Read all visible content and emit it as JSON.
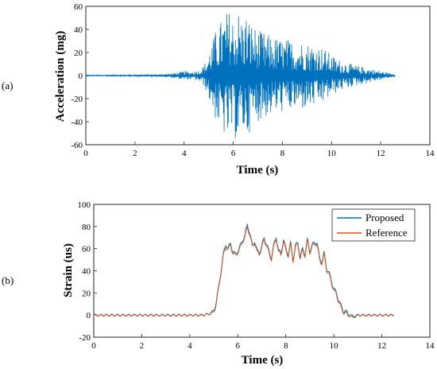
{
  "chart_data": [
    {
      "type": "line",
      "panel_label": "(a)",
      "xlabel": "Time (s)",
      "ylabel": "Acceleration (mg)",
      "xlim": [
        0,
        14
      ],
      "ylim": [
        -60,
        60
      ],
      "xticks": [
        0,
        2,
        4,
        6,
        8,
        10,
        12,
        14
      ],
      "yticks": [
        -60,
        -40,
        -20,
        0,
        20,
        40,
        60
      ],
      "grid": false,
      "legend": null,
      "series": [
        {
          "color": "#0072BD",
          "x": [
            0,
            0.5,
            1,
            1.5,
            2,
            2.5,
            3,
            3.5,
            3.8,
            4,
            4.2,
            4.4,
            4.6,
            4.8,
            4.9,
            5,
            5.1,
            5.2,
            5.3,
            5.4,
            5.5,
            5.6,
            5.7,
            5.8,
            5.9,
            6,
            6.1,
            6.2,
            6.3,
            6.4,
            6.5,
            6.6,
            6.7,
            6.8,
            6.9,
            7,
            7.2,
            7.4,
            7.6,
            7.8,
            8,
            8.2,
            8.4,
            8.6,
            8.8,
            9,
            9.2,
            9.4,
            9.6,
            9.8,
            10,
            10.2,
            10.4,
            10.6,
            10.8,
            11,
            11.2,
            11.4,
            11.6,
            11.8,
            12,
            12.2,
            12.4,
            12.6
          ],
          "amplitude": [
            0.4,
            0.4,
            0.5,
            0.5,
            0.6,
            0.7,
            1,
            2,
            3,
            4,
            3.5,
            4,
            5,
            9,
            14,
            20,
            28,
            34,
            40,
            45,
            48,
            52,
            55,
            58,
            55,
            52,
            56,
            58,
            54,
            50,
            55,
            52,
            48,
            45,
            42,
            40,
            38,
            36,
            34,
            33,
            32,
            32,
            31,
            30,
            30,
            29,
            28,
            27,
            25,
            22,
            18,
            15,
            13,
            12,
            10,
            9,
            8,
            7,
            6,
            5,
            4,
            3,
            2,
            1
          ]
        }
      ]
    },
    {
      "type": "line",
      "panel_label": "(b)",
      "xlabel": "Time (s)",
      "ylabel": "Strain (us)",
      "xlim": [
        0,
        14
      ],
      "ylim": [
        -20,
        100
      ],
      "xticks": [
        0,
        2,
        4,
        6,
        8,
        10,
        12,
        14
      ],
      "yticks": [
        -20,
        0,
        20,
        40,
        60,
        80,
        100
      ],
      "grid": false,
      "legend": "top-right",
      "series": [
        {
          "name": "Proposed",
          "color": "#0072BD",
          "x": [
            0,
            1,
            2,
            3,
            4,
            4.5,
            4.8,
            5,
            5.1,
            5.2,
            5.3,
            5.4,
            5.5,
            5.6,
            5.7,
            5.8,
            5.9,
            6,
            6.1,
            6.2,
            6.3,
            6.4,
            6.5,
            6.6,
            6.7,
            6.8,
            6.9,
            7,
            7.1,
            7.2,
            7.3,
            7.4,
            7.5,
            7.6,
            7.7,
            7.8,
            7.9,
            8,
            8.1,
            8.2,
            8.3,
            8.4,
            8.5,
            8.6,
            8.7,
            8.8,
            8.9,
            9,
            9.1,
            9.2,
            9.3,
            9.4,
            9.5,
            9.6,
            9.7,
            9.8,
            9.9,
            10,
            10.1,
            10.2,
            10.3,
            10.4,
            10.5,
            10.6,
            10.7,
            10.8,
            11,
            11.5,
            12,
            12.5
          ],
          "values": [
            0,
            0,
            0,
            0,
            0,
            0,
            1,
            4,
            12,
            25,
            40,
            55,
            64,
            60,
            65,
            57,
            55,
            58,
            62,
            68,
            72,
            82,
            74,
            63,
            67,
            58,
            57,
            62,
            70,
            64,
            57,
            52,
            63,
            71,
            58,
            56,
            68,
            60,
            55,
            65,
            50,
            62,
            66,
            52,
            60,
            55,
            68,
            58,
            63,
            66,
            65,
            52,
            48,
            56,
            42,
            38,
            31,
            24,
            20,
            14,
            8,
            4,
            3,
            1,
            0,
            -1,
            0,
            0,
            0,
            0
          ]
        },
        {
          "name": "Reference",
          "color": "#D95319",
          "x": [
            0,
            1,
            2,
            3,
            4,
            4.5,
            4.8,
            5,
            5.1,
            5.2,
            5.3,
            5.4,
            5.5,
            5.6,
            5.7,
            5.8,
            5.9,
            6,
            6.1,
            6.2,
            6.3,
            6.4,
            6.5,
            6.6,
            6.7,
            6.8,
            6.9,
            7,
            7.1,
            7.2,
            7.3,
            7.4,
            7.5,
            7.6,
            7.7,
            7.8,
            7.9,
            8,
            8.1,
            8.2,
            8.3,
            8.4,
            8.5,
            8.6,
            8.7,
            8.8,
            8.9,
            9,
            9.1,
            9.2,
            9.3,
            9.4,
            9.5,
            9.6,
            9.7,
            9.8,
            9.9,
            10,
            10.1,
            10.2,
            10.3,
            10.4,
            10.5,
            10.6,
            10.7,
            10.8,
            11,
            11.5,
            12,
            12.5
          ],
          "values": [
            0,
            0,
            0,
            0,
            0,
            0,
            1,
            3,
            11,
            24,
            39,
            54,
            62,
            59,
            64,
            56,
            54,
            57,
            61,
            67,
            71,
            80,
            73,
            62,
            66,
            57,
            56,
            61,
            69,
            63,
            56,
            51,
            62,
            70,
            57,
            55,
            67,
            59,
            54,
            64,
            49,
            61,
            65,
            51,
            59,
            54,
            67,
            57,
            62,
            65,
            64,
            51,
            47,
            55,
            41,
            37,
            30,
            23,
            19,
            13,
            7,
            3,
            2,
            0,
            -1,
            -2,
            0,
            0,
            0,
            0
          ]
        }
      ]
    }
  ]
}
